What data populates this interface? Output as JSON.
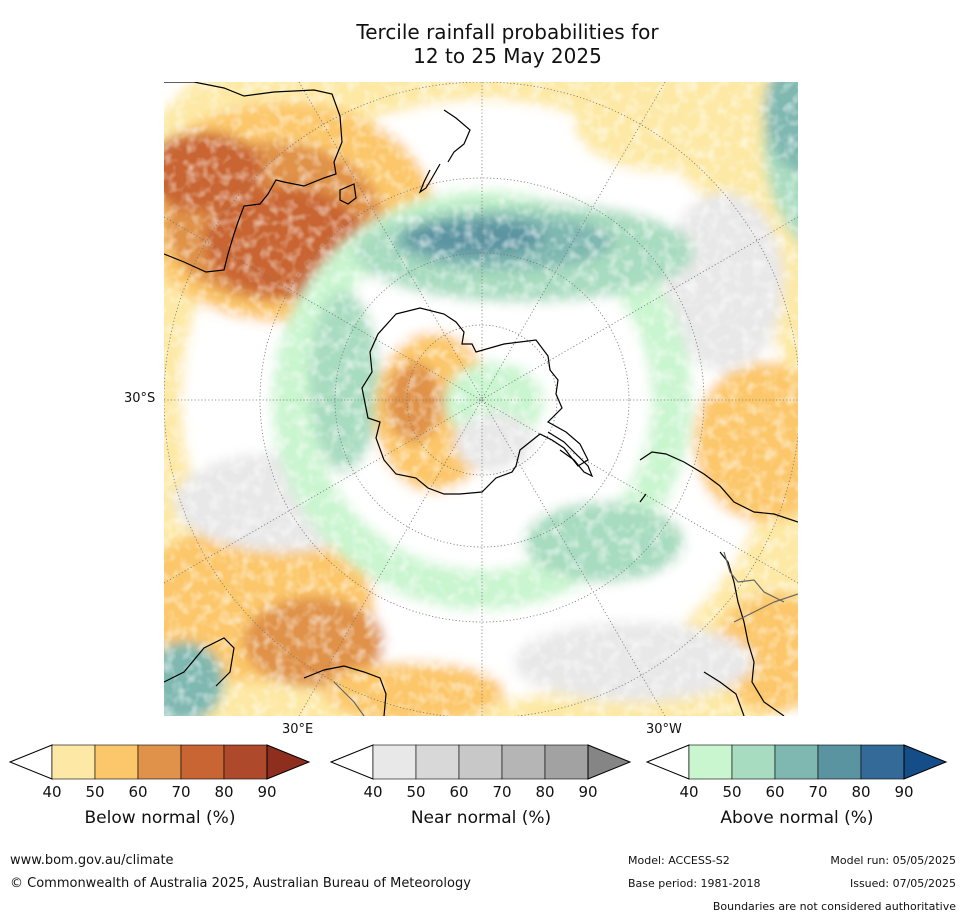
{
  "title": {
    "line1": "Tercile rainfall probabilities for",
    "line2": "12 to 25 May 2025"
  },
  "map": {
    "projection": "south polar stereographic",
    "labels": {
      "left": "30°S",
      "bottom_left": "30°E",
      "bottom_right": "30°W"
    },
    "colors": {
      "below": [
        "#fde9a5",
        "#fcc76a",
        "#e0924a",
        "#c96532",
        "#ae4a2b",
        "#8d2e1f"
      ],
      "near": [
        "#e8e8e8",
        "#d8d8d8",
        "#c8c8c8",
        "#b5b5b5",
        "#a2a2a2",
        "#858585"
      ],
      "above": [
        "#c9f5cf",
        "#a8dcc0",
        "#7fb8b1",
        "#5b94a1",
        "#336a98",
        "#154d89"
      ]
    }
  },
  "colorbars": [
    {
      "id": "below",
      "title": "Below normal (%)",
      "ticks": [
        "40",
        "50",
        "60",
        "70",
        "80",
        "90"
      ],
      "colors": [
        "#fde9a5",
        "#fcc76a",
        "#e0924a",
        "#c96532",
        "#ae4a2b",
        "#8d2e1f"
      ]
    },
    {
      "id": "near",
      "title": "Near normal (%)",
      "ticks": [
        "40",
        "50",
        "60",
        "70",
        "80",
        "90"
      ],
      "colors": [
        "#e8e8e8",
        "#d8d8d8",
        "#c8c8c8",
        "#b5b5b5",
        "#a2a2a2",
        "#858585"
      ]
    },
    {
      "id": "above",
      "title": "Above normal (%)",
      "ticks": [
        "40",
        "50",
        "60",
        "70",
        "80",
        "90"
      ],
      "colors": [
        "#c9f5cf",
        "#a8dcc0",
        "#7fb8b1",
        "#5b94a1",
        "#336a98",
        "#154d89"
      ]
    }
  ],
  "footer": {
    "website": "www.bom.gov.au/climate",
    "copyright": "© Commonwealth of Australia 2025, Australian Bureau of Meteorology",
    "model": "Model: ACCESS-S2",
    "model_run": "Model run: 05/05/2025",
    "base_period": "Base period: 1981-2018",
    "issued": "Issued: 07/05/2025",
    "disclaimer": "Boundaries are not considered authoritative"
  }
}
